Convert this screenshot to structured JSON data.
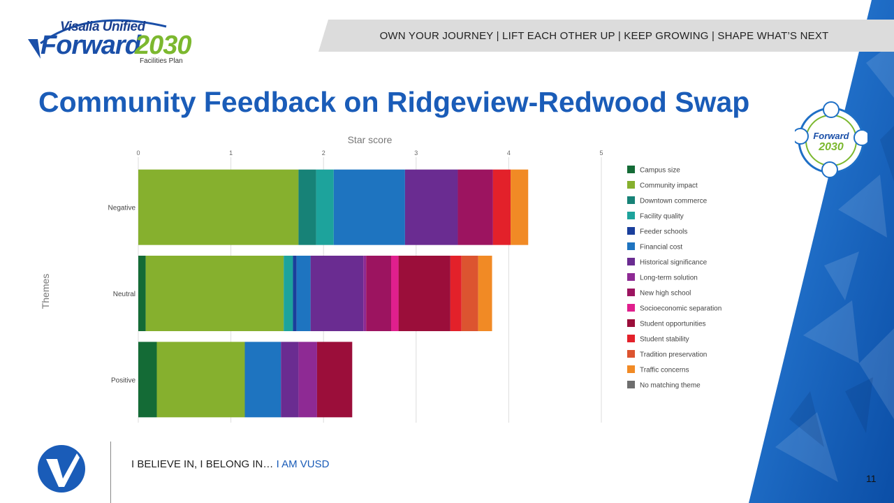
{
  "header": {
    "brand_top": "Visalia Unified",
    "brand_main_a": "Forward",
    "brand_main_b": "2030",
    "brand_sub": "Facilities Plan",
    "slogan": "OWN YOUR JOURNEY | LIFT EACH OTHER UP | KEEP GROWING | SHAPE WHAT’S NEXT"
  },
  "page": {
    "title": "Community Feedback on Ridgeview-Redwood Swap",
    "number": "11"
  },
  "badge": {
    "top": "Forward",
    "bottom": "2030"
  },
  "footer": {
    "text": "I BELIEVE IN, I BELONG IN… ",
    "highlight": "I AM VUSD"
  },
  "colors": {
    "title": "#1a5cb8",
    "accent_blue": "#1565c0",
    "brand_green": "#7cb82f"
  },
  "chart_data": {
    "type": "bar",
    "orientation": "horizontal",
    "stacked": true,
    "title": "Star score",
    "xlabel": "",
    "ylabel": "Themes",
    "xlim": [
      0,
      5
    ],
    "xticks": [
      "0",
      "1",
      "2",
      "3",
      "4",
      "5"
    ],
    "grid": true,
    "legend_placement": "right",
    "categories": [
      "Negative",
      "Neutral",
      "Positive"
    ],
    "series": [
      {
        "name": "Campus size",
        "color": "#146b36",
        "values": [
          0,
          0.08,
          0.2
        ]
      },
      {
        "name": "Community impact",
        "color": "#86b02e",
        "values": [
          1.73,
          1.49,
          0.95
        ]
      },
      {
        "name": "Downtown commerce",
        "color": "#178277",
        "values": [
          0.19,
          0,
          0
        ]
      },
      {
        "name": "Facility quality",
        "color": "#1da39c",
        "values": [
          0.19,
          0.1,
          0
        ]
      },
      {
        "name": "Feeder schools",
        "color": "#1a3f9c",
        "values": [
          0,
          0.04,
          0
        ]
      },
      {
        "name": "Financial cost",
        "color": "#1e74c0",
        "values": [
          0.77,
          0.15,
          0.39
        ]
      },
      {
        "name": "Historical significance",
        "color": "#6a2c91",
        "values": [
          0.57,
          0.57,
          0.19
        ]
      },
      {
        "name": "Long-term solution",
        "color": "#8e2a94",
        "values": [
          0,
          0.03,
          0.2
        ]
      },
      {
        "name": "New high school",
        "color": "#9c1460",
        "values": [
          0.38,
          0.27,
          0
        ]
      },
      {
        "name": "Socioeconomic separation",
        "color": "#e01f8d",
        "values": [
          0,
          0.08,
          0
        ]
      },
      {
        "name": "Student opportunities",
        "color": "#9b0e3a",
        "values": [
          0,
          0.56,
          0.38
        ]
      },
      {
        "name": "Student stability",
        "color": "#e3212a",
        "values": [
          0.19,
          0.12,
          0
        ]
      },
      {
        "name": "Tradition preservation",
        "color": "#dc5430",
        "values": [
          0,
          0.18,
          0
        ]
      },
      {
        "name": "Traffic concerns",
        "color": "#f18a25",
        "values": [
          0.19,
          0.15,
          0
        ]
      },
      {
        "name": "No matching theme",
        "color": "#6e6e6e",
        "values": [
          0,
          0,
          0
        ]
      }
    ]
  }
}
